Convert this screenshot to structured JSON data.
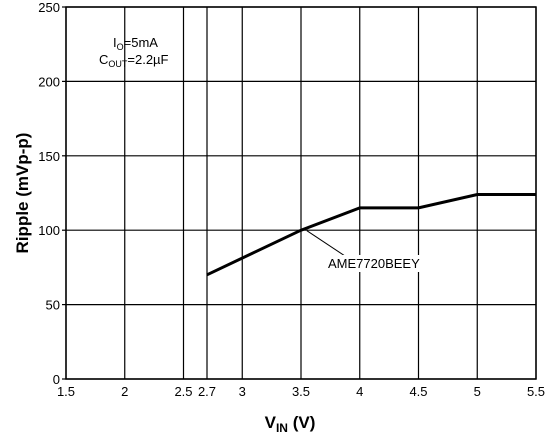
{
  "chart_data": {
    "type": "line",
    "xlabel": {
      "main": "V",
      "sub": "IN",
      "rest": " (V)"
    },
    "ylabel": "Ripple (mVp-p)",
    "xlim": [
      1.5,
      5.5
    ],
    "ylim": [
      0,
      250
    ],
    "xticks": [
      1.5,
      2,
      2.5,
      2.7,
      3,
      3.5,
      4,
      4.5,
      5,
      5.5
    ],
    "xtick_labels": [
      "1.5",
      "2",
      "2.5",
      "2.7",
      "3",
      "3.5",
      "4",
      "4.5",
      "5",
      "5.5"
    ],
    "yticks": [
      0,
      50,
      100,
      150,
      200,
      250
    ],
    "ytick_labels": [
      "0",
      "50",
      "100",
      "150",
      "200",
      "250"
    ],
    "grid": true,
    "series": [
      {
        "name": "AME7720BEEY",
        "x": [
          2.7,
          3.5,
          4.0,
          4.5,
          5.0,
          5.5
        ],
        "y": [
          70,
          100,
          115,
          115,
          124,
          124
        ]
      }
    ],
    "conditions": {
      "io": {
        "main": "I",
        "sub": "O",
        "rest": "=5mA"
      },
      "cout": {
        "main": "C",
        "sub": "OUT",
        "rest": "=2.2µF"
      }
    },
    "series_label": "AME7720BEEY",
    "colors": {
      "line": "#000000",
      "grid": "#000000",
      "background": "#ffffff"
    }
  }
}
